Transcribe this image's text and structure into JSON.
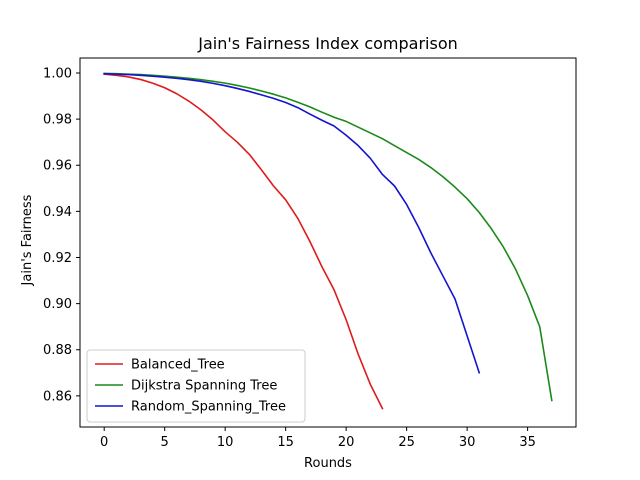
{
  "chart_data": {
    "type": "line",
    "title": "Jain's Fairness Index comparison",
    "xlabel": "Rounds",
    "ylabel": "Jain's Fairness",
    "xlim": [
      -2,
      39
    ],
    "ylim": [
      0.8465,
      1.0065
    ],
    "xticks": [
      0,
      5,
      10,
      15,
      20,
      25,
      30,
      35
    ],
    "yticks": [
      0.86,
      0.88,
      0.9,
      0.92,
      0.94,
      0.96,
      0.98,
      1.0
    ],
    "ytick_labels": [
      "0.86",
      "0.88",
      "0.90",
      "0.92",
      "0.94",
      "0.96",
      "0.98",
      "1.00"
    ],
    "grid": false,
    "legend_position": "lower-left",
    "series": [
      {
        "name": "Balanced_Tree",
        "color": "#e01b1b",
        "x": [
          0,
          1,
          2,
          3,
          4,
          5,
          6,
          7,
          8,
          9,
          10,
          11,
          12,
          13,
          14,
          15,
          16,
          17,
          18,
          19,
          20,
          21,
          22,
          23
        ],
        "y": [
          0.9995,
          0.999,
          0.9983,
          0.9972,
          0.9956,
          0.9936,
          0.991,
          0.9878,
          0.984,
          0.9796,
          0.9745,
          0.97,
          0.9647,
          0.958,
          0.951,
          0.945,
          0.937,
          0.927,
          0.916,
          0.906,
          0.893,
          0.878,
          0.865,
          0.8545
        ]
      },
      {
        "name": "Dijkstra Spanning Tree",
        "color": "#1b8a1b",
        "x": [
          0,
          1,
          2,
          3,
          4,
          5,
          6,
          7,
          8,
          9,
          10,
          11,
          12,
          13,
          14,
          15,
          16,
          17,
          18,
          19,
          20,
          21,
          22,
          23,
          24,
          25,
          26,
          27,
          28,
          29,
          30,
          31,
          32,
          33,
          34,
          35,
          36,
          37
        ],
        "y": [
          0.9998,
          0.9997,
          0.9995,
          0.9993,
          0.999,
          0.9986,
          0.9982,
          0.9977,
          0.9971,
          0.9964,
          0.9956,
          0.9946,
          0.9935,
          0.9922,
          0.9908,
          0.9892,
          0.9873,
          0.9853,
          0.983,
          0.9808,
          0.979,
          0.9765,
          0.974,
          0.9715,
          0.9685,
          0.9655,
          0.9625,
          0.959,
          0.955,
          0.9505,
          0.9455,
          0.9395,
          0.9325,
          0.9245,
          0.915,
          0.9035,
          0.89,
          0.858
        ]
      },
      {
        "name": "Random_Spanning_Tree",
        "color": "#1414d0",
        "x": [
          0,
          1,
          2,
          3,
          4,
          5,
          6,
          7,
          8,
          9,
          10,
          11,
          12,
          13,
          14,
          15,
          16,
          17,
          18,
          19,
          20,
          21,
          22,
          23,
          24,
          25,
          26,
          27,
          28,
          29,
          30,
          31
        ],
        "y": [
          0.9997,
          0.9995,
          0.9993,
          0.999,
          0.9986,
          0.9982,
          0.9977,
          0.9971,
          0.9964,
          0.9955,
          0.9945,
          0.9933,
          0.992,
          0.9905,
          0.989,
          0.9872,
          0.985,
          0.9822,
          0.9795,
          0.977,
          0.973,
          0.9685,
          0.963,
          0.956,
          0.951,
          0.943,
          0.933,
          0.922,
          0.912,
          0.902,
          0.886,
          0.87
        ]
      }
    ]
  }
}
